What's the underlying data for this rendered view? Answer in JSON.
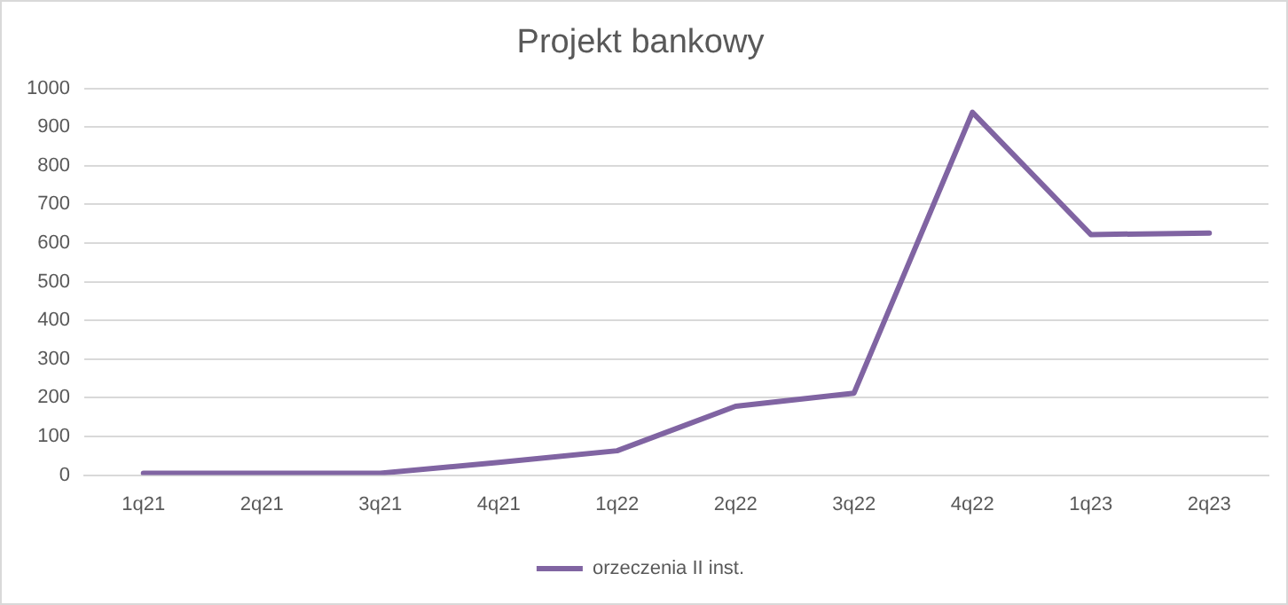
{
  "chart_data": {
    "type": "line",
    "title": "Projekt bankowy",
    "categories": [
      "1q21",
      "2q21",
      "3q21",
      "4q21",
      "1q22",
      "2q22",
      "3q22",
      "4q22",
      "1q23",
      "2q23"
    ],
    "series": [
      {
        "name": "orzeczenia II inst.",
        "color": "#8064a2",
        "values": [
          5,
          5,
          5,
          33,
          63,
          178,
          212,
          938,
          622,
          626
        ]
      }
    ],
    "ylim": [
      0,
      1000
    ],
    "yticks": [
      0,
      100,
      200,
      300,
      400,
      500,
      600,
      700,
      800,
      900,
      1000
    ],
    "grid": "y",
    "legend": "bottom",
    "marker": "none",
    "line_style": "solid"
  }
}
